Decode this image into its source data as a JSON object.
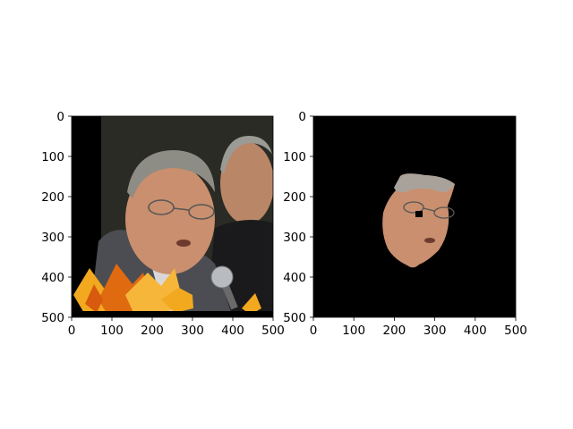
{
  "chart_data": [
    {
      "type": "image",
      "title": "",
      "xlabel": "",
      "ylabel": "",
      "xlim": [
        0,
        500
      ],
      "ylim": [
        500,
        0
      ],
      "xticks": [
        0,
        100,
        200,
        300,
        400,
        500
      ],
      "yticks": [
        0,
        100,
        200,
        300,
        400,
        500
      ],
      "xtick_labels": [
        "0",
        "100",
        "200",
        "300",
        "400",
        "500"
      ],
      "ytick_labels": [
        "0",
        "100",
        "200",
        "300",
        "400",
        "500"
      ],
      "content": "original photo: older man with glasses speaking into a microphone, second man behind, autumn leaves overlay at bottom, black band on left"
    },
    {
      "type": "image",
      "title": "",
      "xlabel": "",
      "ylabel": "",
      "xlim": [
        0,
        500
      ],
      "ylim": [
        500,
        0
      ],
      "xticks": [
        0,
        100,
        200,
        300,
        400,
        500
      ],
      "yticks": [
        0,
        100,
        200,
        300,
        400,
        500
      ],
      "xtick_labels": [
        "0",
        "100",
        "200",
        "300",
        "400",
        "500"
      ],
      "ytick_labels": [
        "0",
        "100",
        "200",
        "300",
        "400",
        "500"
      ],
      "content": "segmented face mask: only the man's face region visible on black background"
    }
  ],
  "colors": {
    "axes_edge": "#000000",
    "mask_background": "#000000",
    "photo_background": "#2a2a24",
    "skin": "#c98f6e",
    "hair": "#8d8d85",
    "leaf_yellow": "#f2a81f",
    "leaf_orange": "#e06a10"
  }
}
